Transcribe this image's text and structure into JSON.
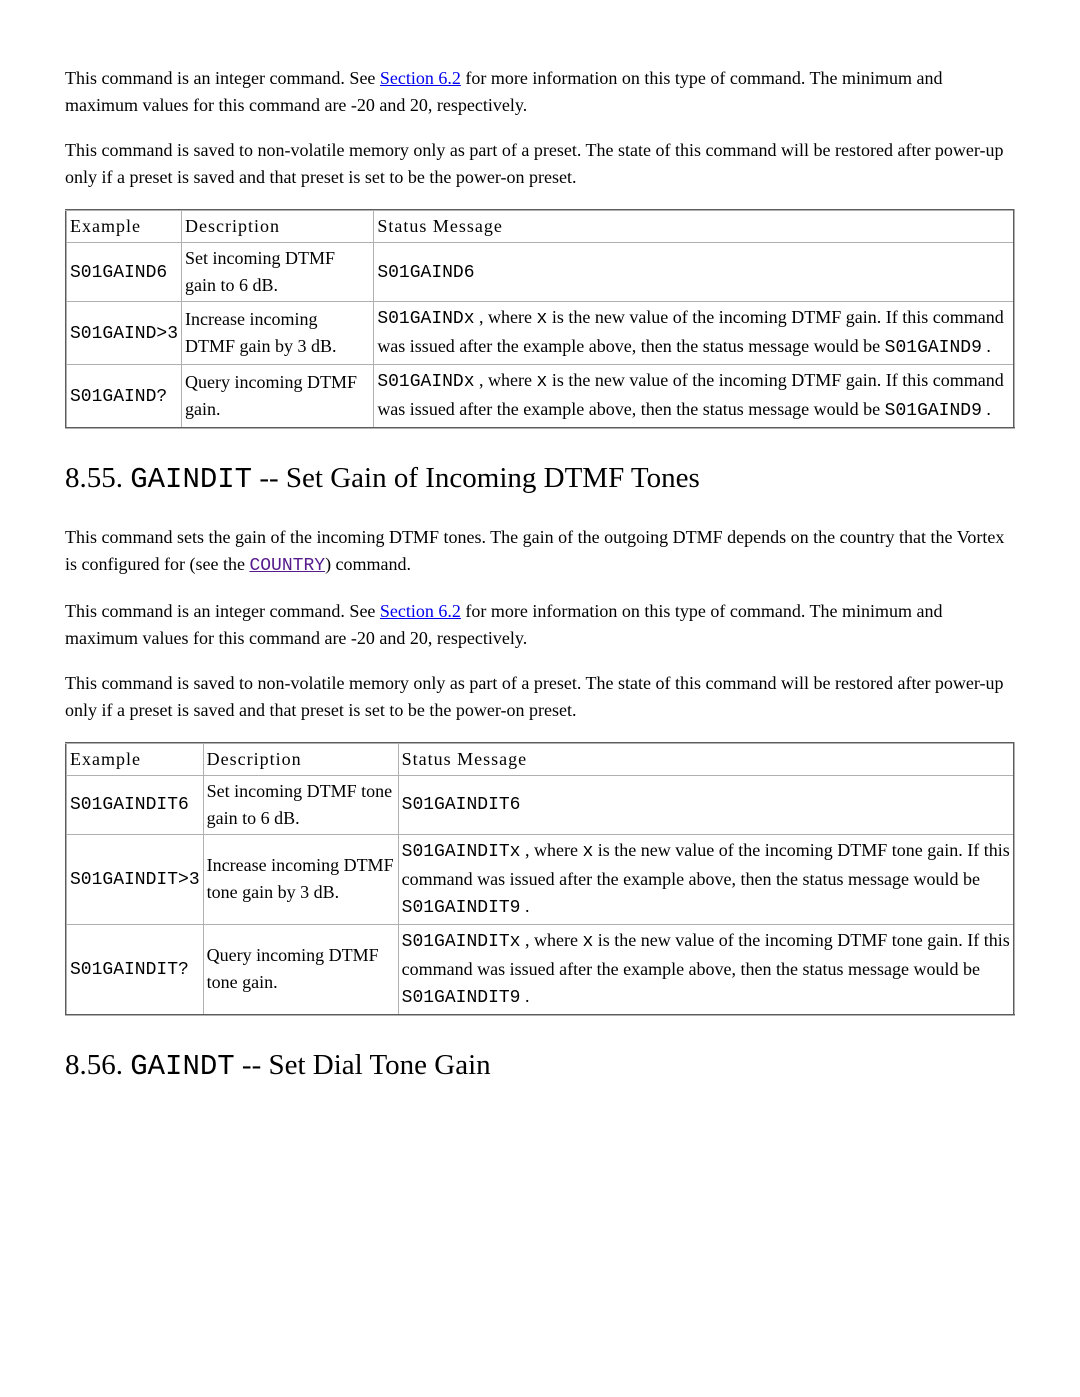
{
  "para1_part1": "This command is an integer command. See ",
  "link_section62": "Section 6.2",
  "para1_part2": " for more information on this type of command. The minimum and maximum values for this command are -20 and 20, respectively.",
  "para2": "This command is saved to non-volatile memory only as part of a preset. The state of this command will be restored after power-up only if a preset is saved and that preset is set to be the power-on preset.",
  "table1": {
    "headers": [
      "Example",
      "Description",
      "Status Message"
    ],
    "row1": {
      "example": "S01GAIND6",
      "description": "Set incoming DTMF gain to 6 dB.",
      "status": "S01GAIND6"
    },
    "row2": {
      "example": "S01GAIND>3",
      "description": "Increase incoming DTMF gain by 3 dB.",
      "status_code1": "S01GAINDx",
      "status_text1": " , where ",
      "status_code2": "x",
      "status_text2": " is the new value of the incoming DTMF gain. If this command was issued after the example above, then the status message would be ",
      "status_code3": "S01GAIND9",
      "status_text3": " ."
    },
    "row3": {
      "example": "S01GAIND?",
      "description": "Query incoming DTMF gain.",
      "status_code1": "S01GAINDx",
      "status_text1": " , where ",
      "status_code2": "x",
      "status_text2": " is the new value of the incoming DTMF gain. If this command was issued after the example above, then the status message would be ",
      "status_code3": "S01GAIND9",
      "status_text3": " ."
    }
  },
  "heading855_num": "8.55. ",
  "heading855_code": "GAINDIT",
  "heading855_rest": " -- Set Gain of Incoming DTMF Tones",
  "para3_part1": "This command sets the gain of the incoming DTMF tones. The gain of the outgoing DTMF depends on the country that the Vortex is configured for (see the ",
  "link_country": "COUNTRY",
  "para3_part2": ") command.",
  "para4_part1": "This command is an integer command. See ",
  "para4_part2": " for more information on this type of command. The minimum and maximum values for this command are -20 and 20, respectively.",
  "para5": "This command is saved to non-volatile memory only as part of a preset. The state of this command will be restored after power-up only if a preset is saved and that preset is set to be the power-on preset.",
  "table2": {
    "headers": [
      "Example",
      "Description",
      "Status Message"
    ],
    "row1": {
      "example": "S01GAINDIT6",
      "description": "Set incoming DTMF tone gain to 6 dB.",
      "status": "S01GAINDIT6"
    },
    "row2": {
      "example": "S01GAINDIT>3",
      "description": "Increase incoming DTMF tone gain by 3 dB.",
      "status_code1": "S01GAINDITx",
      "status_text1": " , where ",
      "status_code2": "x",
      "status_text2": " is the new value of the incoming DTMF tone gain. If this command was issued after the example above, then the status message would be ",
      "status_code3": "S01GAINDIT9",
      "status_text3": " ."
    },
    "row3": {
      "example": "S01GAINDIT?",
      "description": "Query incoming DTMF tone gain.",
      "status_code1": "S01GAINDITx",
      "status_text1": " , where ",
      "status_code2": "x",
      "status_text2": " is the new value of the incoming DTMF tone gain. If this command was issued after the example above, then the status message would be ",
      "status_code3": "S01GAINDIT9",
      "status_text3": " ."
    }
  },
  "heading856_num": "8.56. ",
  "heading856_code": "GAINDT",
  "heading856_rest": " -- Set Dial Tone Gain"
}
